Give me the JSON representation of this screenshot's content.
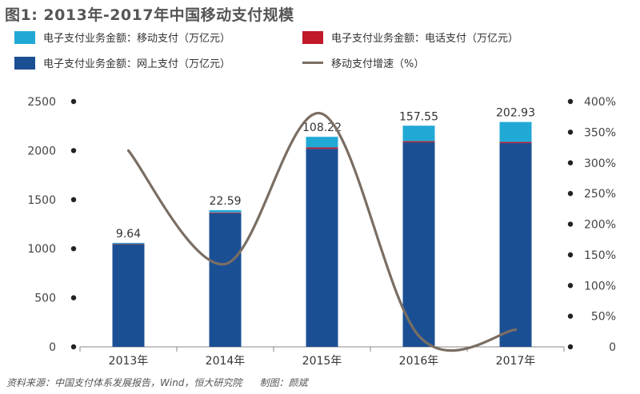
{
  "title": "图1: 2013年-2017年中国移动支付规模",
  "source": "资料来源：中国支付体系发展报告，Wind，恒大研究院",
  "author": "制图：颜斌",
  "chart_data": {
    "type": "bar",
    "stacked": true,
    "categories": [
      "2013年",
      "2014年",
      "2015年",
      "2016年",
      "2017年"
    ],
    "series": [
      {
        "name": "电子支付业务金额：网上支付（万亿元）",
        "color": "#1b4f93",
        "values": [
          1045,
          1362,
          2018,
          2084,
          2076
        ]
      },
      {
        "name": "电子支付业务金额：电话支付（万亿元）",
        "color": "#c0192a",
        "values": [
          5,
          8,
          14,
          12,
          12
        ]
      },
      {
        "name": "电子支付业务金额：移动支付（万亿元）",
        "color": "#21a9d6",
        "values": [
          9.64,
          22.59,
          108.22,
          157.55,
          202.93
        ]
      }
    ],
    "bar_labels": [
      "9.64",
      "22.59",
      "108.22",
      "157.55",
      "202.93"
    ],
    "line_series": {
      "name": "移动支付增速（%）",
      "color": "#7a6e64",
      "values": [
        320,
        135,
        380,
        18,
        28
      ]
    },
    "y_left": {
      "ticks": [
        "0",
        "500",
        "1000",
        "1500",
        "2000",
        "2500"
      ],
      "range": [
        0,
        2500
      ]
    },
    "y_right": {
      "ticks": [
        "0",
        "50%",
        "100%",
        "150%",
        "200%",
        "250%",
        "300%",
        "350%",
        "400%"
      ],
      "range": [
        0,
        400
      ]
    },
    "legend_position": "top",
    "grid": false
  }
}
